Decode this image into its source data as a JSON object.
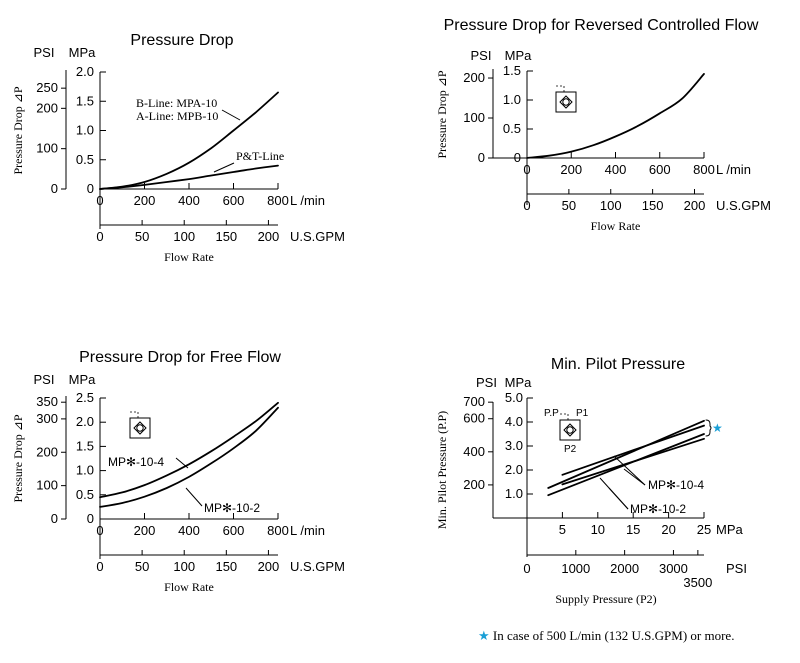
{
  "colors": {
    "ink": "#000000",
    "accent": "#1a9fd6"
  },
  "footnote": {
    "star": "★",
    "text": "In case of 500 L/min (132 U.S.GPM) or more."
  },
  "chart_data": [
    {
      "type": "line",
      "title": "Pressure Drop",
      "ylabel": "Pressure Drop ⊿P",
      "xlabel": "Flow Rate",
      "units": {
        "psi": "PSI",
        "mpa": "MPa",
        "lmin": "L /min",
        "gpm": "U.S.GPM"
      },
      "xlim": [
        0,
        800
      ],
      "ylim": [
        0,
        2.0
      ],
      "mpa_ticks": [
        "0",
        "0.5",
        "1.0",
        "1.5",
        "2.0"
      ],
      "psi_ticks": [
        "0",
        "100",
        "200",
        "250"
      ],
      "lmin_ticks": [
        "0",
        "200",
        "400",
        "600",
        "800"
      ],
      "gpm_ticks": [
        "0",
        "50",
        "100",
        "150",
        "200"
      ],
      "series": [
        {
          "name": "B-Line: MPA-10\nA-Line: MPB-10",
          "x": [
            0,
            100,
            200,
            300,
            400,
            500,
            600,
            700,
            800
          ],
          "y": [
            0,
            0.04,
            0.12,
            0.26,
            0.45,
            0.7,
            1.0,
            1.31,
            1.65
          ]
        },
        {
          "name": "P&T-Line",
          "x": [
            0,
            100,
            200,
            300,
            400,
            500,
            600,
            700,
            800
          ],
          "y": [
            0,
            0.03,
            0.07,
            0.12,
            0.17,
            0.23,
            0.29,
            0.35,
            0.4
          ]
        }
      ],
      "annotations": [
        "B-Line: MPA-10",
        "A-Line: MPB-10",
        "P&T-Line"
      ]
    },
    {
      "type": "line",
      "title": "Pressure Drop for Reversed Controlled Flow",
      "ylabel": "Pressure Drop ⊿P",
      "xlabel": "Flow Rate",
      "units": {
        "psi": "PSI",
        "mpa": "MPa",
        "lmin": "L /min",
        "gpm": "U.S.GPM"
      },
      "xlim": [
        0,
        800
      ],
      "ylim": [
        0,
        1.5
      ],
      "mpa_ticks": [
        "0",
        "0.5",
        "1.0",
        "1.5"
      ],
      "psi_ticks": [
        "0",
        "100",
        "200"
      ],
      "lmin_ticks": [
        "0",
        "200",
        "400",
        "600",
        "800"
      ],
      "gpm_ticks": [
        "0",
        "50",
        "100",
        "150",
        "200"
      ],
      "series": [
        {
          "name": "",
          "x": [
            0,
            100,
            200,
            300,
            400,
            500,
            600,
            700,
            800
          ],
          "y": [
            0,
            0.04,
            0.11,
            0.22,
            0.37,
            0.55,
            0.77,
            1.02,
            1.45
          ]
        }
      ],
      "symbol": "check-valve-symbol"
    },
    {
      "type": "line",
      "title": "Pressure Drop for Free Flow",
      "ylabel": "Pressure Drop ⊿P",
      "xlabel": "Flow Rate",
      "units": {
        "psi": "PSI",
        "mpa": "MPa",
        "lmin": "L /min",
        "gpm": "U.S.GPM"
      },
      "xlim": [
        0,
        800
      ],
      "ylim": [
        0,
        2.5
      ],
      "mpa_ticks": [
        "0",
        "0.5",
        "1.0",
        "1.5",
        "2.0",
        "2.5"
      ],
      "psi_ticks": [
        "0",
        "100",
        "200",
        "300",
        "350"
      ],
      "lmin_ticks": [
        "0",
        "200",
        "400",
        "600",
        "800"
      ],
      "gpm_ticks": [
        "0",
        "50",
        "100",
        "150",
        "200"
      ],
      "series": [
        {
          "name": "MP✻-10-4",
          "x": [
            0,
            100,
            200,
            300,
            400,
            500,
            600,
            700,
            800
          ],
          "y": [
            0.45,
            0.55,
            0.7,
            0.9,
            1.13,
            1.4,
            1.7,
            2.02,
            2.4
          ]
        },
        {
          "name": "MP✻-10-2",
          "x": [
            0,
            100,
            200,
            300,
            400,
            500,
            600,
            700,
            800
          ],
          "y": [
            0.25,
            0.33,
            0.46,
            0.64,
            0.87,
            1.15,
            1.46,
            1.82,
            2.3
          ]
        }
      ],
      "symbol": "check-valve-symbol"
    },
    {
      "type": "line",
      "title": "Min. Pilot Pressure",
      "ylabel": "Min. Pilot Pressure (P.P)",
      "xlabel": "Supply Pressure (P2)",
      "units": {
        "psi": "PSI",
        "mpa": "MPa"
      },
      "xlim": [
        0,
        25
      ],
      "ylim": [
        0,
        5.0
      ],
      "mpa_ticks": [
        "0",
        "1.0",
        "2.0",
        "3.0",
        "4.0",
        "5.0"
      ],
      "psi_ticks": [
        "200",
        "400",
        "600",
        "700"
      ],
      "x_mpa_ticks": [
        "5",
        "10",
        "15",
        "20",
        "25"
      ],
      "x_psi_ticks": [
        "0",
        "1000",
        "2000",
        "3000",
        "3500"
      ],
      "series": [
        {
          "name": "MP✻-10-4",
          "x": [
            3,
            25
          ],
          "y": [
            1.25,
            4.05
          ]
        },
        {
          "name": "MP✻-10-4",
          "x": [
            5,
            25
          ],
          "y": [
            1.8,
            3.85
          ]
        },
        {
          "name": "MP✻-10-2",
          "x": [
            3,
            25
          ],
          "y": [
            0.95,
            3.5
          ]
        },
        {
          "name": "MP✻-10-2",
          "x": [
            5,
            25
          ],
          "y": [
            1.4,
            3.3
          ]
        }
      ],
      "annotations": [
        "MP✻-10-4",
        "MP✻-10-2",
        "P.P",
        "P1",
        "P2",
        "★"
      ],
      "symbol": "pilot-check-valve-symbol"
    }
  ]
}
